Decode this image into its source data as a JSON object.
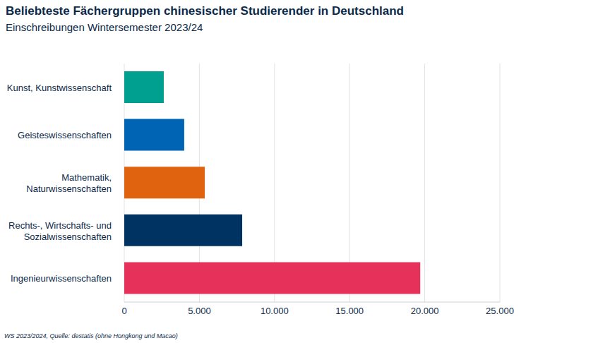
{
  "chart_data": {
    "type": "bar",
    "orientation": "horizontal",
    "title": "Beliebteste Fächergruppen chinesischer Studierender in Deutschland",
    "subtitle": "Einschreibungen Wintersemester 2023/24",
    "note": "WS 2023/2024, Quelle: destatis (ohne Hongkong und Macao)",
    "categories": [
      "Kunst, Kunstwissenschaft",
      "Geisteswissenschaften",
      "Mathematik, Naturwissenschaften",
      "Rechts-, Wirtschafts- und Sozialwissenschaften",
      "Ingenieurwissenschaften"
    ],
    "values": [
      2630,
      3990,
      5360,
      7850,
      19700
    ],
    "colors": [
      "#00a091",
      "#0064b4",
      "#e0640f",
      "#003262",
      "#e6325a"
    ],
    "xlim": [
      0,
      25000
    ],
    "xticks": [
      0,
      {
        "value": 5000,
        "label": "5.000"
      },
      {
        "value": 10000,
        "label": "10.000"
      },
      {
        "value": 15000,
        "label": "15.000"
      },
      {
        "value": 20000,
        "label": "20.000"
      },
      {
        "value": 25000,
        "label": "25.000"
      }
    ],
    "grid": true
  }
}
